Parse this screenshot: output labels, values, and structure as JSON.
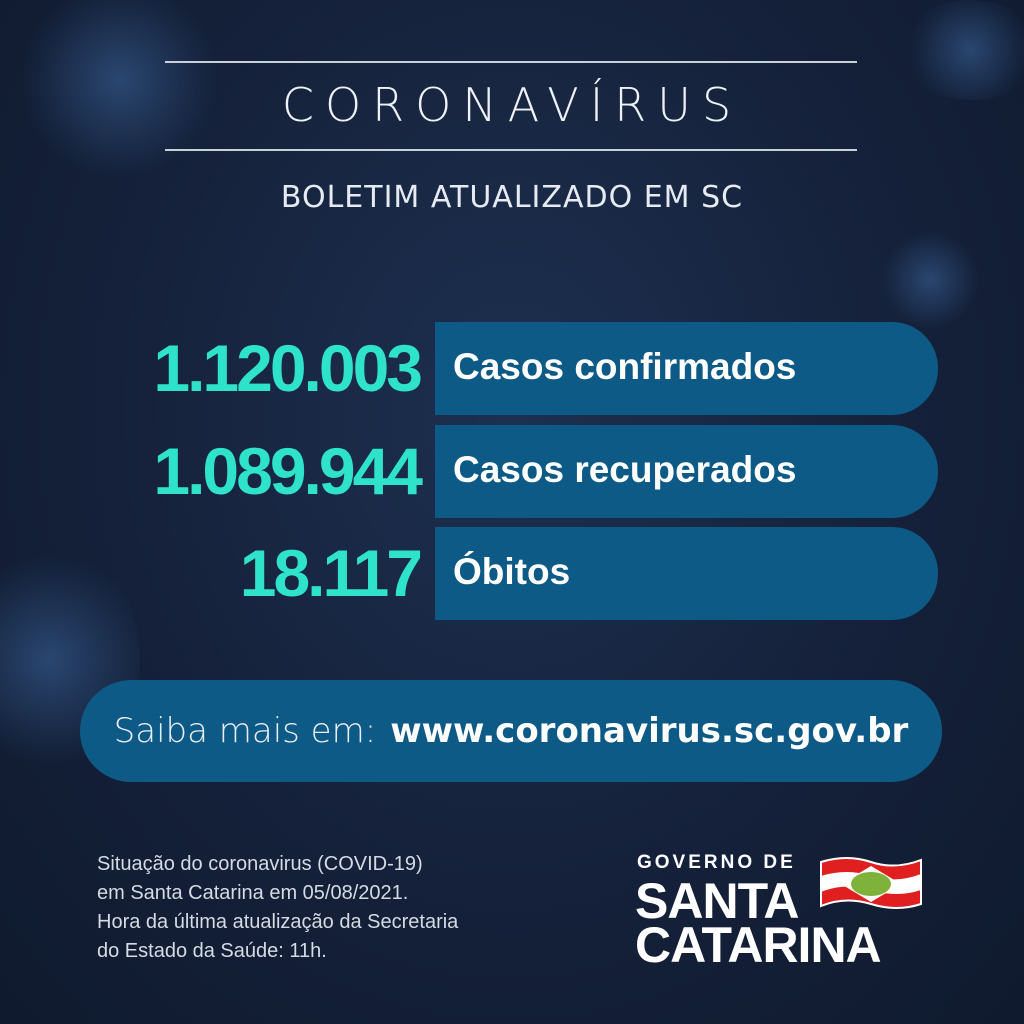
{
  "header": {
    "title": "CORONAVÍRUS",
    "subtitle": "BOLETIM ATUALIZADO EM SC"
  },
  "stats": [
    {
      "value": "1.120.003",
      "label": "Casos confirmados"
    },
    {
      "value": "1.089.944",
      "label": "Casos recuperados"
    },
    {
      "value": "18.117",
      "label": "Óbitos"
    }
  ],
  "info": {
    "prefix": "Saiba mais em:",
    "url": "www.coronavirus.sc.gov.br"
  },
  "footer": {
    "lines": [
      "Situação do coronavirus (COVID-19)",
      "em Santa Catarina em 05/08/2021.",
      "Hora da última atualização da Secretaria",
      "do Estado da Saúde: 11h."
    ]
  },
  "logo": {
    "line1": "GOVERNO DE",
    "line2": "SANTA",
    "line3": "CATARINA"
  },
  "colors": {
    "background": "#15213a",
    "bar": "#0d5a86",
    "number": "#2ee3c9"
  }
}
